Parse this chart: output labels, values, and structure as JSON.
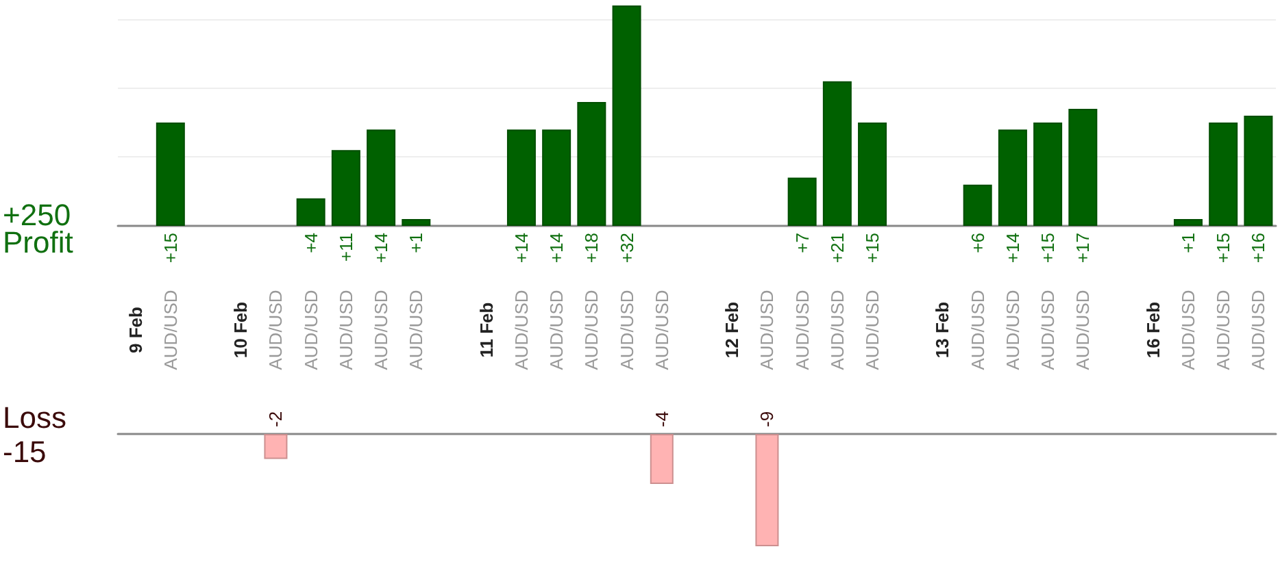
{
  "chart_data": [
    {
      "type": "bar",
      "ylabel": "Profit",
      "annotations": [
        "+250"
      ],
      "categories": [
        "9 Feb",
        "AUD/USD",
        null,
        "10 Feb",
        "AUD/USD",
        "AUD/USD",
        "AUD/USD",
        "AUD/USD",
        "AUD/USD",
        null,
        "11 Feb",
        "AUD/USD",
        "AUD/USD",
        "AUD/USD",
        "AUD/USD",
        "AUD/USD",
        null,
        "12 Feb",
        "AUD/USD",
        "AUD/USD",
        "AUD/USD",
        "AUD/USD",
        null,
        "13 Feb",
        "AUD/USD",
        "AUD/USD",
        "AUD/USD",
        "AUD/USD",
        null,
        "16 Feb",
        "AUD/USD",
        "AUD/USD",
        "AUD/USD"
      ],
      "series": [
        {
          "color": "#006100",
          "values": [
            null,
            15,
            null,
            null,
            null,
            4,
            11,
            14,
            1,
            null,
            null,
            14,
            14,
            18,
            32,
            null,
            null,
            null,
            null,
            7,
            21,
            15,
            null,
            null,
            6,
            14,
            15,
            17,
            null,
            null,
            1,
            15,
            16
          ],
          "value_labels": [
            null,
            "+15",
            null,
            null,
            null,
            "+4",
            "+11",
            "+14",
            "+1",
            null,
            null,
            "+14",
            "+14",
            "+18",
            "+32",
            null,
            null,
            null,
            null,
            "+7",
            "+21",
            "+15",
            null,
            null,
            "+6",
            "+14",
            "+15",
            "+17",
            null,
            null,
            "+1",
            "+15",
            "+16"
          ]
        }
      ],
      "ylim": [
        0,
        32
      ],
      "yticks": [
        {
          "value": 10,
          "label": null
        },
        {
          "value": 20,
          "label": null
        },
        {
          "value": 30,
          "label": null
        }
      ],
      "grid": "y",
      "tick_labels": "x"
    },
    {
      "type": "bar",
      "ylabel": "Loss",
      "annotations": [
        "-15"
      ],
      "categories": [
        null,
        null,
        null,
        null,
        null,
        null,
        null,
        null,
        null,
        null,
        null,
        null,
        null,
        null,
        null,
        null,
        null,
        null,
        null,
        null,
        null,
        null,
        null,
        null,
        null,
        null,
        null,
        null,
        null,
        null,
        null,
        null,
        null
      ],
      "series": [
        {
          "color": "#ffb3b3",
          "values": [
            null,
            null,
            null,
            null,
            -2,
            null,
            null,
            null,
            null,
            null,
            null,
            null,
            null,
            null,
            null,
            -4,
            null,
            null,
            -9,
            null,
            null,
            null,
            null,
            null,
            null,
            null,
            null,
            null,
            null,
            null,
            null,
            null,
            null
          ],
          "value_labels": [
            null,
            null,
            null,
            null,
            "-2",
            null,
            null,
            null,
            null,
            null,
            null,
            null,
            null,
            null,
            null,
            "-4",
            null,
            null,
            "-9",
            null,
            null,
            null,
            null,
            null,
            null,
            null,
            null,
            null,
            null,
            null,
            null,
            null,
            null
          ]
        }
      ],
      "ylim": [
        -9,
        0
      ],
      "tick_labels": false
    }
  ]
}
